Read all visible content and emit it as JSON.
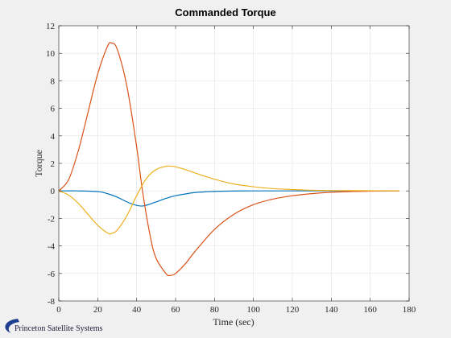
{
  "chart_data": {
    "type": "line",
    "title": "Commanded Torque",
    "xlabel": "Time (sec)",
    "ylabel": "Torque",
    "xlim": [
      0,
      180
    ],
    "ylim": [
      -8,
      12
    ],
    "xticks": [
      0,
      20,
      40,
      60,
      80,
      100,
      120,
      140,
      160,
      180
    ],
    "yticks": [
      -8,
      -6,
      -4,
      -2,
      0,
      2,
      4,
      6,
      8,
      10,
      12
    ],
    "grid": true,
    "series": [
      {
        "color": "#0072BD",
        "x": [
          0,
          10,
          20,
          25,
          30,
          35,
          40,
          43,
          46,
          50,
          55,
          60,
          70,
          80,
          90,
          100,
          120,
          140,
          160,
          175
        ],
        "y": [
          0,
          0,
          -0.05,
          -0.2,
          -0.45,
          -0.8,
          -1.05,
          -1.1,
          -1.0,
          -0.8,
          -0.55,
          -0.35,
          -0.12,
          -0.04,
          -0.01,
          0,
          0,
          0,
          0,
          0
        ]
      },
      {
        "color": "#D95319",
        "x": [
          0,
          5,
          10,
          15,
          20,
          25,
          27,
          30,
          35,
          40,
          43,
          47,
          50,
          55,
          57,
          60,
          65,
          70,
          80,
          90,
          100,
          110,
          120,
          130,
          140,
          150,
          160,
          175
        ],
        "y": [
          0,
          0.8,
          2.9,
          5.7,
          8.5,
          10.5,
          10.75,
          10.3,
          7.6,
          3.2,
          0,
          -3.3,
          -4.9,
          -6.0,
          -6.15,
          -6.0,
          -5.3,
          -4.4,
          -2.8,
          -1.7,
          -1.0,
          -0.6,
          -0.35,
          -0.2,
          -0.1,
          -0.05,
          -0.02,
          0
        ]
      },
      {
        "color": "#EDB120",
        "x": [
          0,
          5,
          10,
          15,
          20,
          25,
          27,
          30,
          35,
          40,
          45,
          50,
          55,
          57,
          60,
          65,
          70,
          80,
          90,
          100,
          110,
          120,
          130,
          140,
          160,
          175
        ],
        "y": [
          0,
          -0.3,
          -0.9,
          -1.7,
          -2.5,
          -3.05,
          -3.1,
          -2.85,
          -1.8,
          -0.35,
          0.9,
          1.55,
          1.78,
          1.8,
          1.75,
          1.55,
          1.3,
          0.85,
          0.5,
          0.3,
          0.17,
          0.1,
          0.05,
          0.03,
          0.01,
          0
        ]
      }
    ]
  },
  "logo": {
    "text": "Princeton Satellite Systems",
    "color": "#1f3f8f"
  }
}
